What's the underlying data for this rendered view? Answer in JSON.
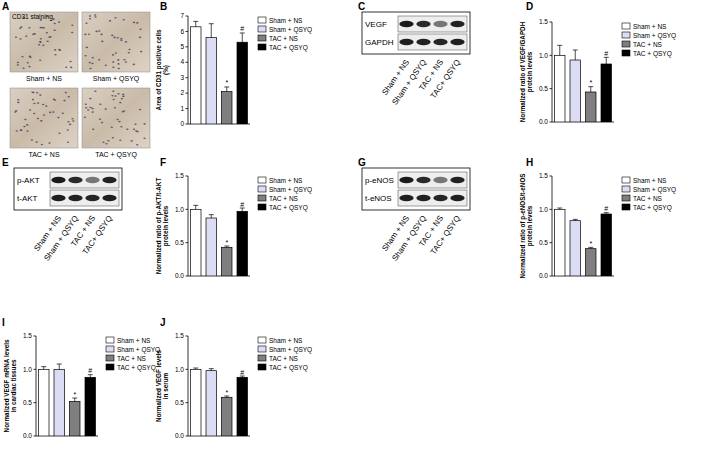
{
  "chart_data": [
    {
      "panel": "B",
      "type": "bar",
      "y_label": [
        "Area of CD31 positive cells",
        "(%)"
      ],
      "categories": [
        "Sham + NS",
        "Sham + QSYQ",
        "TAC + NS",
        "TAC + QSYQ"
      ],
      "colors": [
        "#ffffff",
        "#dcdcf5",
        "#7f7f7f",
        "#000000"
      ],
      "values": [
        6.3,
        5.6,
        2.1,
        5.3
      ],
      "errors": [
        0.35,
        0.9,
        0.3,
        0.6
      ],
      "annotations": [
        null,
        null,
        "*",
        "#"
      ],
      "ylim": [
        0,
        7
      ],
      "yticks": [
        0,
        1,
        2,
        3,
        4,
        5,
        6,
        7
      ],
      "legend": "right",
      "tick_labels": "y"
    },
    {
      "panel": "D",
      "type": "bar",
      "y_label": [
        "Normalized ratio of VEGF/GAPDH",
        "protein levels"
      ],
      "categories": [
        "Sham + NS",
        "Sham + QSYQ",
        "TAC + NS",
        "TAC + QSYQ"
      ],
      "colors": [
        "#ffffff",
        "#dcdcf5",
        "#7f7f7f",
        "#000000"
      ],
      "values": [
        1.0,
        0.93,
        0.45,
        0.87
      ],
      "errors": [
        0.15,
        0.15,
        0.08,
        0.1
      ],
      "annotations": [
        null,
        null,
        "*",
        "#"
      ],
      "ylim": [
        0,
        1.5
      ],
      "yticks": [
        {
          "value": 0,
          "label": "0.0"
        },
        0.5,
        {
          "value": 1,
          "label": "1.0"
        },
        1.5
      ],
      "legend": "right",
      "tick_labels": "y"
    },
    {
      "panel": "F",
      "type": "bar",
      "y_label": [
        "Normalized ratio of p-AKT/t-AKT",
        "protein levels"
      ],
      "categories": [
        "Sham + NS",
        "Sham + QSYQ",
        "TAC + NS",
        "TAC + QSYQ"
      ],
      "colors": [
        "#ffffff",
        "#dcdcf5",
        "#7f7f7f",
        "#000000"
      ],
      "values": [
        1.0,
        0.87,
        0.43,
        0.97
      ],
      "errors": [
        0.06,
        0.05,
        0.02,
        0.05
      ],
      "annotations": [
        null,
        null,
        "*",
        "#"
      ],
      "ylim": [
        0,
        1.5
      ],
      "yticks": [
        {
          "value": 0,
          "label": "0.0"
        },
        0.5,
        {
          "value": 1,
          "label": "1.0"
        },
        1.5
      ],
      "legend": "right",
      "tick_labels": "y"
    },
    {
      "panel": "H",
      "type": "bar",
      "y_label": [
        "Normalized ratio of p-eNOS/t-eNOS",
        "protein levels"
      ],
      "categories": [
        "Sham + NS",
        "Sham + QSYQ",
        "TAC + NS",
        "TAC + QSYQ"
      ],
      "colors": [
        "#ffffff",
        "#dcdcf5",
        "#7f7f7f",
        "#000000"
      ],
      "values": [
        1.0,
        0.83,
        0.41,
        0.93
      ],
      "errors": [
        0.02,
        0.02,
        0.02,
        0.02
      ],
      "annotations": [
        null,
        null,
        "*",
        "#"
      ],
      "ylim": [
        0,
        1.5
      ],
      "yticks": [
        {
          "value": 0,
          "label": "0.0"
        },
        0.5,
        {
          "value": 1,
          "label": "1.0"
        },
        1.5
      ],
      "legend": "right",
      "tick_labels": "y"
    },
    {
      "panel": "I",
      "type": "bar",
      "y_label": [
        "Normalized VEGF mRNA levels",
        "in cardiac tissues"
      ],
      "categories": [
        "Sham + NS",
        "Sham + QSYQ",
        "TAC + NS",
        "TAC + QSYQ"
      ],
      "colors": [
        "#ffffff",
        "#dcdcf5",
        "#7f7f7f",
        "#000000"
      ],
      "values": [
        1.0,
        1.0,
        0.52,
        0.88
      ],
      "errors": [
        0.04,
        0.08,
        0.05,
        0.04
      ],
      "annotations": [
        null,
        null,
        "*",
        "#"
      ],
      "ylim": [
        0,
        1.5
      ],
      "yticks": [
        {
          "value": 0,
          "label": "0.0"
        },
        0.5,
        {
          "value": 1,
          "label": "1.0"
        },
        1.5
      ],
      "legend": "right",
      "tick_labels": "y"
    },
    {
      "panel": "J",
      "type": "bar",
      "y_label": [
        "Normalized VEGF levels",
        "in serum"
      ],
      "categories": [
        "Sham + NS",
        "Sham + QSYQ",
        "TAC + NS",
        "TAC + QSYQ"
      ],
      "colors": [
        "#ffffff",
        "#dcdcf5",
        "#7f7f7f",
        "#000000"
      ],
      "values": [
        1.0,
        0.98,
        0.58,
        0.88
      ],
      "errors": [
        0.02,
        0.03,
        0.02,
        0.02
      ],
      "annotations": [
        null,
        null,
        "*",
        "#"
      ],
      "ylim": [
        0,
        1.5
      ],
      "yticks": [
        {
          "value": 0,
          "label": "0.0"
        },
        0.5,
        {
          "value": 1,
          "label": "1.0"
        },
        1.5
      ],
      "legend": "right",
      "tick_labels": "y"
    }
  ],
  "images": {
    "panel": "A",
    "title": "CD31 staining",
    "labels": [
      "Sham + NS",
      "Sham + QSYQ",
      "TAC + NS",
      "TAC + QSYQ"
    ]
  },
  "blots": [
    {
      "panel": "C",
      "rows": [
        "VEGF",
        "GAPDH"
      ],
      "lanes": [
        "Sham + NS",
        "Sham + QSYQ",
        "TAC + NS",
        "TAC+ QSYQ"
      ]
    },
    {
      "panel": "E",
      "rows": [
        "p-AKT",
        "t-AKT"
      ],
      "lanes": [
        "Sham + NS",
        "Sham + QSYQ",
        "TAC + NS",
        "TAC+ QSYQ"
      ]
    },
    {
      "panel": "G",
      "rows": [
        "p-eNOS",
        "t-eNOS"
      ],
      "lanes": [
        "Sham + NS",
        "Sham + QSYQ",
        "TAC + NS",
        "TAC+ QSYQ"
      ]
    }
  ]
}
